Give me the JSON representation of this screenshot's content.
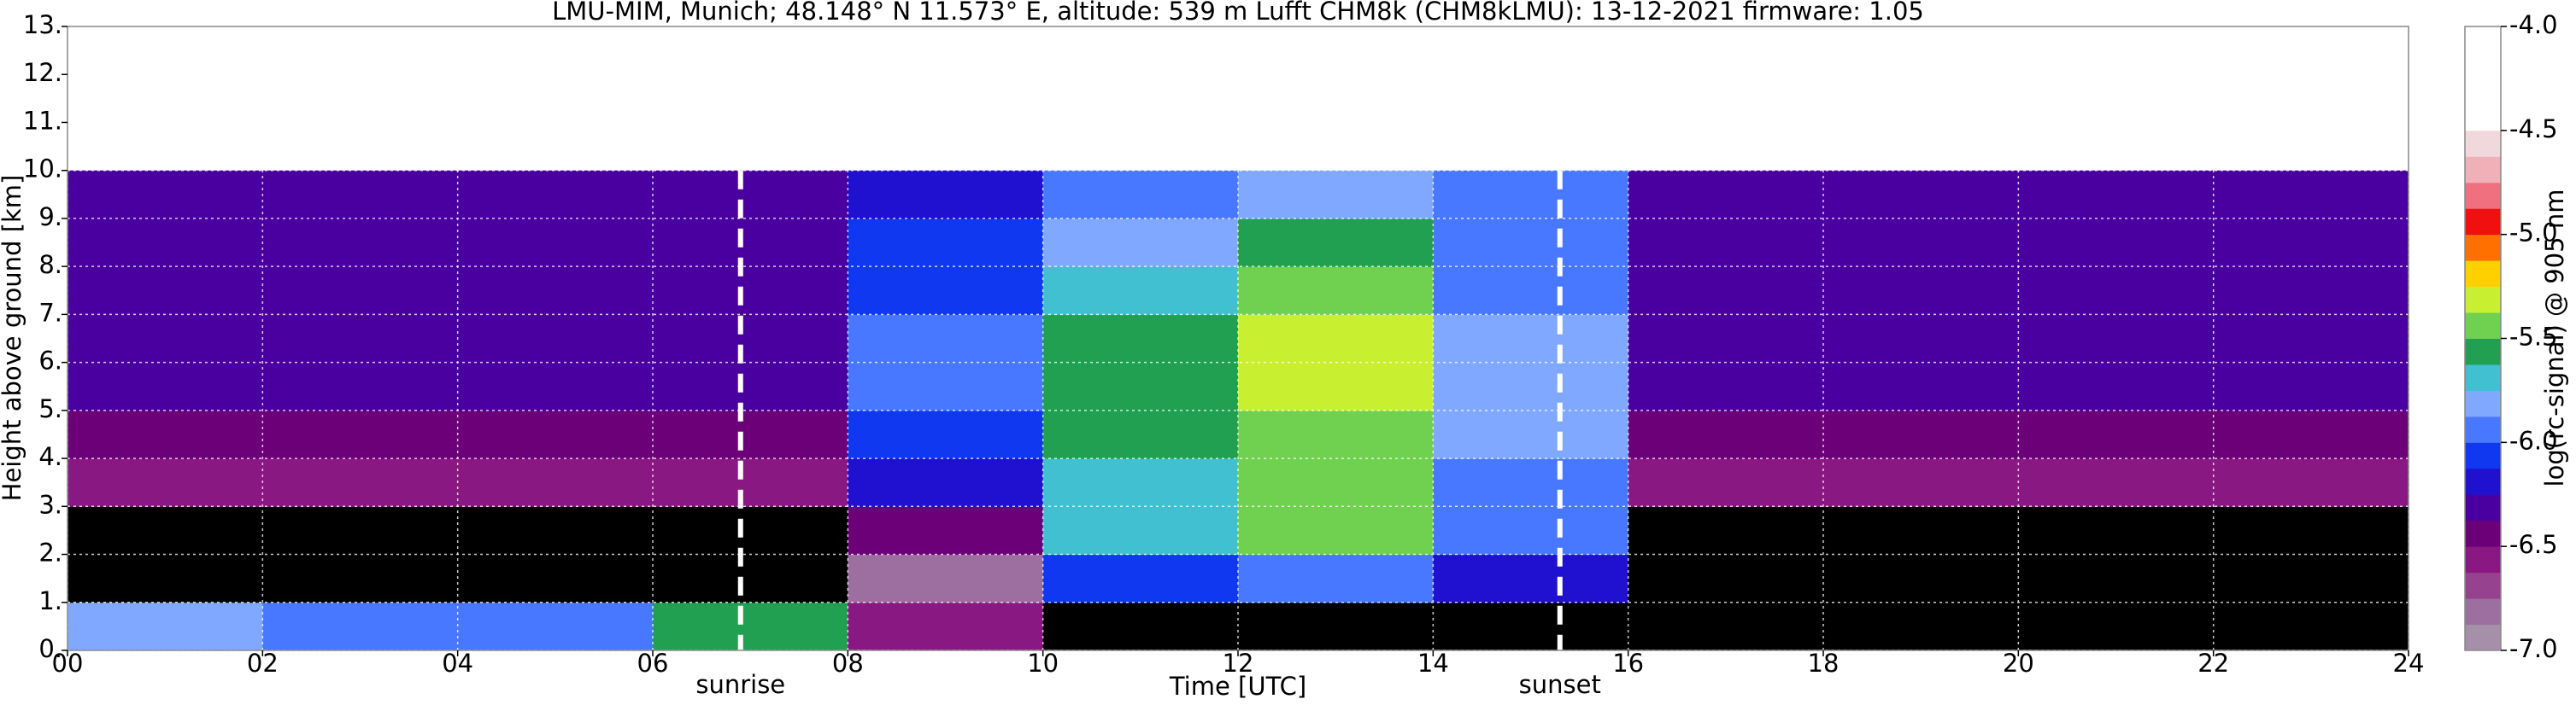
{
  "chart_data": {
    "type": "heatmap",
    "title": "LMU-MIM, Munich; 48.148° N 11.573° E, altitude: 539 m    Lufft CHM8k (CHM8kLMU): 13-12-2021    firmware: 1.05",
    "xlabel": "Time [UTC]",
    "ylabel": "Height above ground [km]",
    "colorbar_label": "log(rc-signal) @ 905 nm",
    "xbins": [
      0,
      2,
      4,
      6,
      8,
      10,
      12,
      14,
      16,
      18,
      20,
      22,
      24
    ],
    "ybins": [
      0,
      1,
      2,
      3,
      4,
      5,
      6,
      7,
      8,
      9,
      10
    ],
    "z": [
      [
        -5.8,
        -5.9,
        -5.9,
        -5.6,
        -6.6,
        -7.3,
        -7.3,
        -7.3,
        -7.4,
        -7.5,
        -7.5,
        -7.5
      ],
      [
        -7.5,
        -7.5,
        -7.5,
        -7.5,
        -6.8,
        -6.1,
        -6.0,
        -6.2,
        -7.5,
        -7.5,
        -7.5,
        -7.5
      ],
      [
        -7.2,
        -7.2,
        -7.2,
        -7.2,
        -6.4,
        -5.7,
        -5.5,
        -6.0,
        -7.2,
        -7.2,
        -7.2,
        -7.2
      ],
      [
        -6.6,
        -6.6,
        -6.6,
        -6.6,
        -6.2,
        -5.7,
        -5.5,
        -5.9,
        -6.6,
        -6.6,
        -6.6,
        -6.6
      ],
      [
        -6.4,
        -6.4,
        -6.4,
        -6.4,
        -6.1,
        -5.6,
        -5.4,
        -5.8,
        -6.4,
        -6.4,
        -6.4,
        -6.4
      ],
      [
        -6.3,
        -6.3,
        -6.3,
        -6.3,
        -6.0,
        -5.6,
        -5.3,
        -5.8,
        -6.3,
        -6.3,
        -6.3,
        -6.3
      ],
      [
        -6.3,
        -6.3,
        -6.3,
        -6.3,
        -6.0,
        -5.6,
        -5.3,
        -5.8,
        -6.3,
        -6.3,
        -6.3,
        -6.3
      ],
      [
        -6.3,
        -6.3,
        -6.3,
        -6.3,
        -6.1,
        -5.7,
        -5.4,
        -5.9,
        -6.3,
        -6.3,
        -6.3,
        -6.3
      ],
      [
        -6.3,
        -6.3,
        -6.3,
        -6.3,
        -6.1,
        -5.8,
        -5.6,
        -6.0,
        -6.3,
        -6.3,
        -6.3,
        -6.3
      ],
      [
        -6.3,
        -6.3,
        -6.3,
        -6.3,
        -6.2,
        -5.9,
        -5.8,
        -6.0,
        -6.3,
        -6.3,
        -6.3,
        -6.3
      ]
    ],
    "zlim": [
      -7,
      -4
    ],
    "colormap": [
      "#a58fa9",
      "#9d6fa0",
      "#97428f",
      "#8a1882",
      "#6c0078",
      "#4a00a0",
      "#2010d0",
      "#1038f0",
      "#4878ff",
      "#80a8ff",
      "#40c0d0",
      "#20a050",
      "#70d050",
      "#c8f030",
      "#ffd000",
      "#ff7000",
      "#f01010",
      "#f07080",
      "#f0b0b8",
      "#f0d8dc",
      "#ffffff",
      "#ffffff",
      "#ffffff",
      "#ffffff"
    ],
    "under_color": "#000000",
    "xlim": [
      0,
      24
    ],
    "ylim": [
      0,
      13
    ],
    "zticks": [
      {
        "value": -4,
        "label": "-4.0"
      },
      -4.5,
      {
        "value": -5,
        "label": "-5.0"
      },
      -5.5,
      {
        "value": -6,
        "label": "-6.0"
      },
      -6.5,
      {
        "value": -7,
        "label": "-7.0"
      }
    ],
    "xticks": [
      {
        "value": 0,
        "label": "00"
      },
      {
        "value": 2,
        "label": "02"
      },
      {
        "value": 4,
        "label": "04"
      },
      {
        "value": 6,
        "label": "06"
      },
      {
        "value": 8,
        "label": "08"
      },
      10,
      12,
      14,
      16,
      18,
      20,
      22,
      24
    ],
    "yticks": [
      {
        "value": 0,
        "label": "0."
      },
      {
        "value": 1,
        "label": "1."
      },
      {
        "value": 2,
        "label": "2."
      },
      {
        "value": 3,
        "label": "3."
      },
      {
        "value": 4,
        "label": "4."
      },
      {
        "value": 5,
        "label": "5."
      },
      {
        "value": 6,
        "label": "6."
      },
      {
        "value": 7,
        "label": "7."
      },
      {
        "value": 8,
        "label": "8."
      },
      {
        "value": 9,
        "label": "9."
      },
      {
        "value": 10,
        "label": "10."
      },
      {
        "value": 11,
        "label": "11."
      },
      {
        "value": 12,
        "label": "12."
      },
      {
        "value": 13,
        "label": "13."
      }
    ],
    "grid": true,
    "annotations": [
      {
        "text": "sunrise",
        "x": 6.9
      },
      {
        "text": "sunset",
        "x": 15.3
      }
    ]
  }
}
